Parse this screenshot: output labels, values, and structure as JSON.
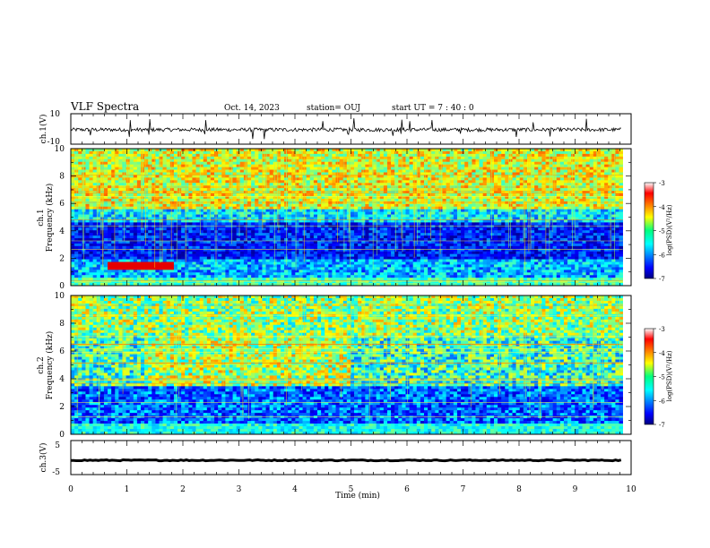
{
  "header": {
    "title": "VLF Spectra",
    "date": "Oct. 14, 2023",
    "station": "station= OUJ",
    "start_ut": "start  UT  =   7 : 40 : 0"
  },
  "colorbar": {
    "label": "log(PSD)(V²/Hz)",
    "ticks": [
      "-3",
      "-4",
      "-5",
      "-6",
      "-7"
    ],
    "range": [
      -7,
      -3
    ],
    "colormap": "jet"
  },
  "chart_data": [
    {
      "type": "line",
      "panel": "waveform-ch1",
      "ylabel": "ch.1(V)",
      "ylim": [
        -10,
        10
      ],
      "ytick_labels": [
        "10",
        "-10"
      ],
      "xlim": [
        0,
        10
      ],
      "baseline": -0.5,
      "noise_amplitude": 1.2,
      "spikes_min": [
        0.35,
        1.05,
        1.4,
        2.4,
        3.25,
        3.45,
        4.5,
        4.95,
        5.05,
        5.75,
        5.9,
        6.05,
        6.45,
        6.95,
        7.95,
        8.25,
        8.55,
        9.2
      ]
    },
    {
      "type": "heatmap",
      "panel": "spectrogram-ch1",
      "ylabel": "ch.1",
      "ylabel2": "Frequency (kHz)",
      "xlim": [
        0,
        9.85
      ],
      "ylim": [
        0,
        10
      ],
      "ytick_labels": [
        "0",
        "2",
        "4",
        "6",
        "8",
        "10"
      ],
      "zlim": [
        -7,
        -3
      ],
      "features": [
        {
          "desc": "broadband sferics region",
          "fmin": 5.0,
          "fmax": 10.0,
          "level": -4.4
        },
        {
          "desc": "quiet band",
          "fmin": 2.0,
          "fmax": 5.0,
          "level": -6.4
        },
        {
          "desc": "low band",
          "fmin": 0.0,
          "fmax": 2.0,
          "level": -5.6
        },
        {
          "desc": "enhancement",
          "tmin": 0.65,
          "tmax": 1.85,
          "fmin": 1.3,
          "fmax": 1.7,
          "level": -3.4
        }
      ]
    },
    {
      "type": "heatmap",
      "panel": "spectrogram-ch2",
      "ylabel": "ch.2",
      "ylabel2": "Frequency (kHz)",
      "xlim": [
        0,
        9.85
      ],
      "ylim": [
        0,
        10
      ],
      "ytick_labels": [
        "0",
        "2",
        "4",
        "6",
        "8",
        "10"
      ],
      "zlim": [
        -7,
        -3
      ],
      "features": [
        {
          "desc": "broadband noise",
          "fmin": 3.5,
          "fmax": 10.0,
          "level": -4.9
        },
        {
          "desc": "quiet band",
          "fmin": 0.0,
          "fmax": 3.5,
          "level": -6.1
        },
        {
          "desc": "enhanced band",
          "tmin": 1.3,
          "tmax": 5.0,
          "fmin": 3.5,
          "fmax": 7.0,
          "level": -4.6
        }
      ]
    },
    {
      "type": "line",
      "panel": "waveform-ch3",
      "ylabel": "ch.3(V)",
      "ylim": [
        -5,
        5
      ],
      "ytick_labels": [
        "5",
        "-5"
      ],
      "xlim": [
        0,
        10
      ],
      "baseline": -0.8,
      "noise_amplitude": 0.3
    }
  ],
  "xaxis": {
    "label": "Time  (min)",
    "tick_labels": [
      "0",
      "1",
      "2",
      "3",
      "4",
      "5",
      "6",
      "7",
      "8",
      "9",
      "10"
    ],
    "range": [
      0,
      10
    ]
  }
}
